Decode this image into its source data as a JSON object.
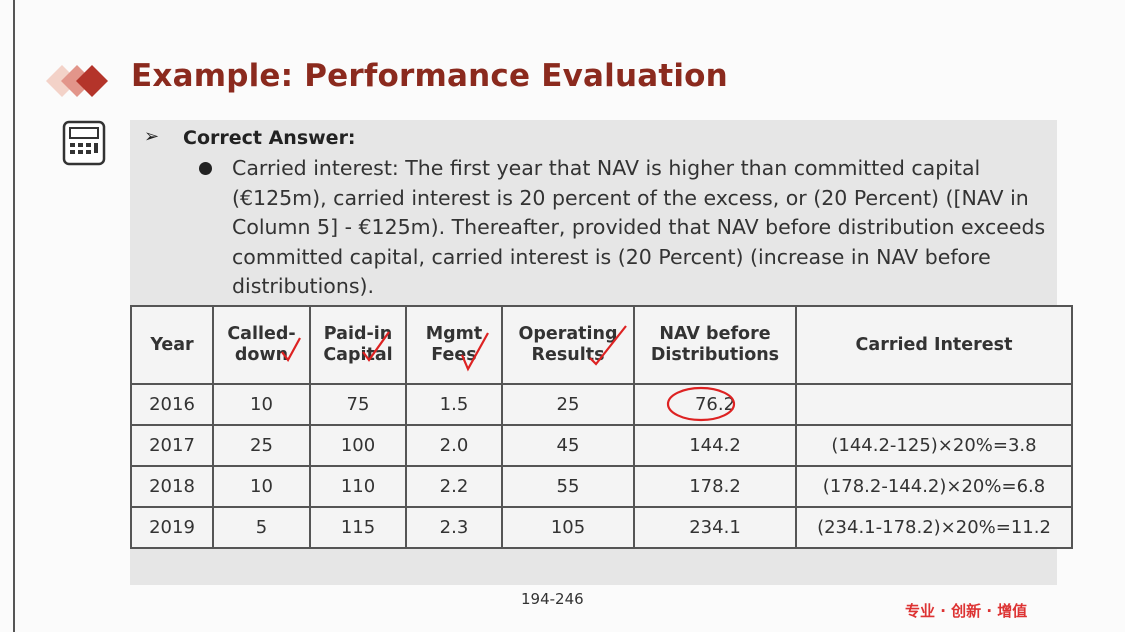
{
  "header": {
    "title": "Example: Performance Evaluation"
  },
  "section": {
    "label": "Correct Answer:",
    "bullet": "Carried interest: The first year that NAV is higher than committed capital (€125m), carried interest is 20 percent of the excess, or (20 Percent) ([NAV in Column 5] - €125m). Thereafter, provided that NAV before distribution exceeds committed capital, carried interest is (20 Percent) (increase in NAV before distributions)."
  },
  "table": {
    "columns": [
      "Year",
      "Called-down",
      "Paid-in Capital",
      "Mgmt Fees",
      "Operating Results",
      "NAV before Distributions",
      "Carried Interest"
    ],
    "rows": [
      [
        "2016",
        "10",
        "75",
        "1.5",
        "25",
        "76.2",
        ""
      ],
      [
        "2017",
        "25",
        "100",
        "2.0",
        "45",
        "144.2",
        "(144.2-125)×20%=3.8"
      ],
      [
        "2018",
        "10",
        "110",
        "2.2",
        "55",
        "178.2",
        "(178.2-144.2)×20%=6.8"
      ],
      [
        "2019",
        "5",
        "115",
        "2.3",
        "105",
        "234.1",
        "(234.1-178.2)×20%=11.2"
      ]
    ]
  },
  "footer": {
    "page": "194-246",
    "slogan": "专业 · 创新 · 增值"
  }
}
